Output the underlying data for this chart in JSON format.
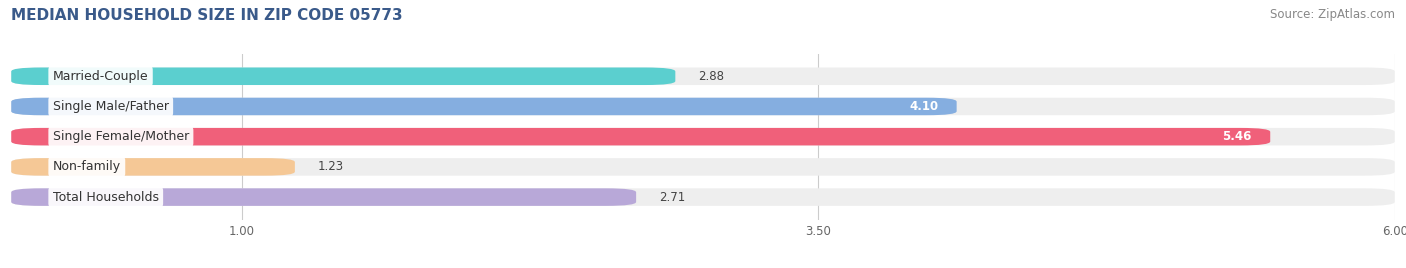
{
  "title": "MEDIAN HOUSEHOLD SIZE IN ZIP CODE 05773",
  "source": "Source: ZipAtlas.com",
  "categories": [
    "Married-Couple",
    "Single Male/Father",
    "Single Female/Mother",
    "Non-family",
    "Total Households"
  ],
  "values": [
    2.88,
    4.1,
    5.46,
    1.23,
    2.71
  ],
  "bar_colors": [
    "#5bcfcf",
    "#85aee0",
    "#f0607a",
    "#f5c896",
    "#b8a8d8"
  ],
  "label_colors": [
    "#444444",
    "#ffffff",
    "#ffffff",
    "#444444",
    "#444444"
  ],
  "xlim": [
    0.0,
    6.0
  ],
  "xmin": 0.0,
  "xticks": [
    1.0,
    3.5,
    6.0
  ],
  "bar_height": 0.58,
  "background_color": "#ffffff",
  "bar_bg_color": "#eeeeee",
  "title_fontsize": 11,
  "source_fontsize": 8.5,
  "title_color": "#3a5a8a",
  "cat_fontsize": 9
}
